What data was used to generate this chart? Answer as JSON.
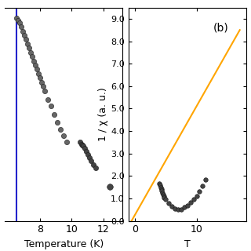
{
  "left": {
    "xlim": [
      5.8,
      13.2
    ],
    "ylim": [
      0.0,
      1.0
    ],
    "xticks": [
      8,
      10,
      12
    ],
    "xlabel": "Temperature (K)",
    "blue_vline_x": 6.5,
    "blue_color": "#2222cc",
    "upper_x": [
      6.5,
      6.6,
      6.7,
      6.8,
      6.9,
      7.0,
      7.1,
      7.2,
      7.3,
      7.4,
      7.5,
      7.6,
      7.7,
      7.8,
      7.9,
      8.0,
      8.1,
      8.2,
      8.3,
      8.5,
      8.7,
      8.9,
      9.1,
      9.3,
      9.5,
      9.7
    ],
    "upper_y": [
      0.95,
      0.94,
      0.93,
      0.91,
      0.89,
      0.87,
      0.85,
      0.83,
      0.81,
      0.79,
      0.77,
      0.75,
      0.73,
      0.71,
      0.69,
      0.67,
      0.65,
      0.63,
      0.61,
      0.57,
      0.54,
      0.5,
      0.46,
      0.43,
      0.4,
      0.37
    ],
    "lower_x": [
      10.5,
      10.6,
      10.65,
      10.72,
      10.8,
      10.9,
      11.0,
      11.1,
      11.2,
      11.35,
      11.5,
      12.4
    ],
    "lower_y": [
      0.37,
      0.36,
      0.355,
      0.35,
      0.34,
      0.325,
      0.31,
      0.295,
      0.28,
      0.265,
      0.25,
      0.16
    ]
  },
  "right": {
    "xlim": [
      -1.0,
      18.0
    ],
    "ylim": [
      0.0,
      9.5
    ],
    "yticks": [
      0.0,
      1.0,
      2.0,
      3.0,
      4.0,
      5.0,
      6.0,
      7.0,
      8.0,
      9.0
    ],
    "xticks": [
      0,
      10
    ],
    "xlabel": "T",
    "ylabel": "1 / χ (a. u.)",
    "panel_label": "(b)",
    "orange_line_x": [
      -0.5,
      17.0
    ],
    "orange_line_y": [
      0.0,
      8.5
    ],
    "scatter_x": [
      4.0,
      4.1,
      4.2,
      4.3,
      4.4,
      4.5,
      4.6,
      4.7,
      4.8,
      5.0,
      5.5,
      6.0,
      6.5,
      7.0,
      7.5,
      8.0,
      8.5,
      9.0,
      9.5,
      10.0,
      10.5,
      11.0,
      11.5
    ],
    "scatter_y": [
      1.65,
      1.6,
      1.5,
      1.42,
      1.35,
      1.25,
      1.18,
      1.1,
      1.05,
      0.95,
      0.78,
      0.65,
      0.55,
      0.5,
      0.52,
      0.6,
      0.7,
      0.82,
      0.95,
      1.1,
      1.3,
      1.55,
      1.82
    ],
    "orange_color": "#FFA500",
    "marker_color": "#111111"
  },
  "bg_color": "#ffffff"
}
